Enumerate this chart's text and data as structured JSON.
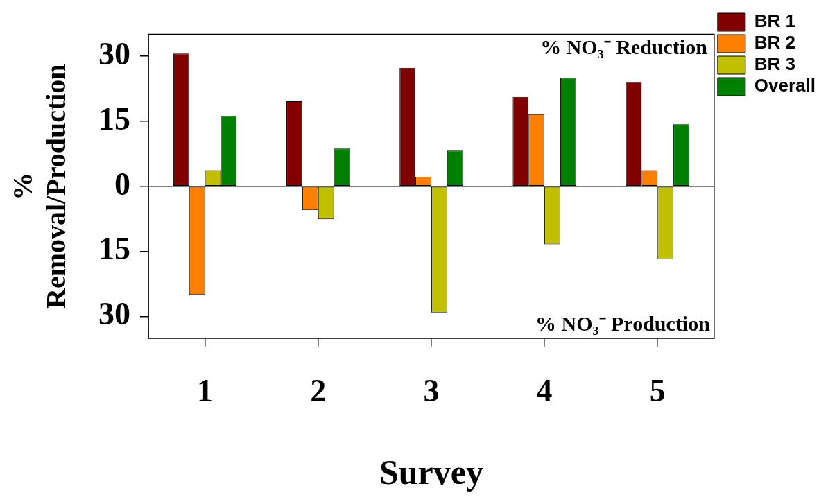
{
  "chart_data": {
    "type": "bar",
    "xlabel": "Survey",
    "ylabel": "% Removal/Production",
    "categories": [
      "1",
      "2",
      "3",
      "4",
      "5"
    ],
    "series": [
      {
        "name": "BR 1",
        "color": "#800000",
        "values": [
          30.6,
          19.6,
          27.3,
          20.6,
          24.0
        ]
      },
      {
        "name": "BR 2",
        "color": "#ff8000",
        "values": [
          -25.0,
          -5.5,
          2.2,
          16.6,
          3.7
        ]
      },
      {
        "name": "BR 3",
        "color": "#c0c000",
        "values": [
          3.7,
          -7.6,
          -29.1,
          -13.4,
          -16.8
        ]
      },
      {
        "name": "Overall",
        "color": "#008000",
        "values": [
          16.2,
          8.7,
          8.2,
          25.0,
          14.3
        ]
      }
    ],
    "ylim": [
      -35,
      35
    ],
    "yticks": [
      {
        "value": -30,
        "label": "30"
      },
      {
        "value": -15,
        "label": "15"
      },
      0,
      15,
      30
    ],
    "ref_lines": [
      {
        "axis": "y",
        "value": 0,
        "color": "#000000"
      }
    ],
    "annotations": [
      "% NO₃⁻ Reduction",
      "% NO₃⁻ Production"
    ],
    "legend": "top right",
    "grid": false
  }
}
